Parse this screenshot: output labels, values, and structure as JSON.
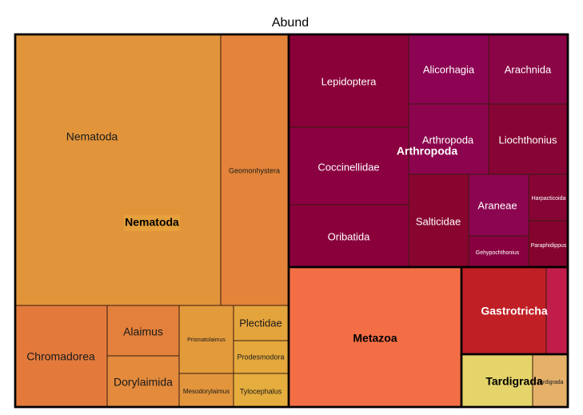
{
  "chart_data": {
    "type": "treemap",
    "title": "Abund",
    "groups": [
      {
        "name": "Nematoda",
        "color": "#e07a3b",
        "items": [
          {
            "label": "Nematoda",
            "color": "#e2943a"
          },
          {
            "label": "Geomonhystera",
            "color": "#e3843a"
          },
          {
            "label": "Chromadorea",
            "color": "#e37a3c"
          },
          {
            "label": "Alaimus",
            "color": "#e3803b"
          },
          {
            "label": "Dorylaimida",
            "color": "#e38a3c"
          },
          {
            "label": "Prismatolaimus",
            "color": "#e39a3b"
          },
          {
            "label": "Mesodorylaimus",
            "color": "#e3953c"
          },
          {
            "label": "Plectidae",
            "color": "#e4a43c"
          },
          {
            "label": "Prodesmodora",
            "color": "#e4a83c"
          },
          {
            "label": "Tylocephalus",
            "color": "#e5ad3d"
          }
        ]
      },
      {
        "name": "Arthropoda",
        "color": "#8b0a35",
        "items": [
          {
            "label": "Lepidoptera",
            "color": "#8a0038"
          },
          {
            "label": "Alicorhagia",
            "color": "#8c0353"
          },
          {
            "label": "Arachnida",
            "color": "#8a0546"
          },
          {
            "label": "Coccinellidae",
            "color": "#8b0040"
          },
          {
            "label": "Arthropoda",
            "color": "#8c044d"
          },
          {
            "label": "Liochthonius",
            "color": "#870535"
          },
          {
            "label": "Oribatida",
            "color": "#8a003b"
          },
          {
            "label": "Salticidae",
            "color": "#880530"
          },
          {
            "label": "Araneae",
            "color": "#8c0550"
          },
          {
            "label": "Harpacticoida",
            "color": "#860535"
          },
          {
            "label": "Gehypochthonius",
            "color": "#880040"
          },
          {
            "label": "Paraphidippus",
            "color": "#84042f"
          }
        ]
      },
      {
        "name": "Metazoa",
        "color": "#f36e45",
        "items": [
          {
            "label": "",
            "color": "#f36e45"
          }
        ]
      },
      {
        "name": "Gastrotricha",
        "color": "#bf1f25",
        "items": [
          {
            "label": "",
            "color": "#bf1f25"
          },
          {
            "label": "",
            "color": "#c21c4a"
          }
        ]
      },
      {
        "name": "Tardigrada",
        "color": "#e5d46a",
        "items": [
          {
            "label": "",
            "color": "#e5d46a"
          },
          {
            "label": "Tardigrada",
            "color": "#e5b06a"
          }
        ]
      }
    ]
  }
}
